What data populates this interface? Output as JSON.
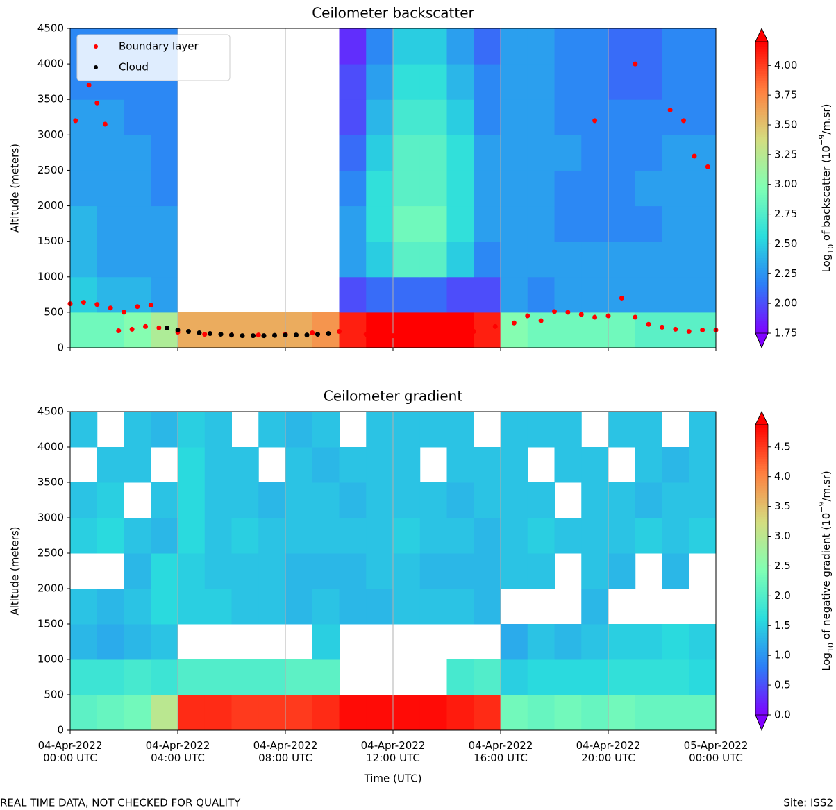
{
  "chart_data": [
    {
      "type": "heatmap",
      "title": "Ceilometer backscatter",
      "y_label": "Altitude (meters)",
      "colorbar_label": [
        "Log",
        "10",
        " of backscatter (10",
        "−9",
        "/m.sr)"
      ],
      "colormap": [
        "#8000ff",
        "#2c7ef7",
        "#2adddd",
        "#80ffb4",
        "#d4dd80",
        "#ff8040",
        "#ff0000"
      ],
      "clim": [
        1.75,
        4.2
      ],
      "cticks": [
        1.75,
        {
          "value": 2.0,
          "label": "2.00"
        },
        2.25,
        {
          "value": 2.5,
          "label": "2.50"
        },
        2.75,
        {
          "value": 3.0,
          "label": "3.00"
        },
        3.25,
        {
          "value": 3.5,
          "label": "3.50"
        },
        3.75,
        {
          "value": 4.0,
          "label": "4.00"
        }
      ],
      "xlim": [
        0,
        24
      ],
      "xticks": [
        0,
        4,
        8,
        12,
        16,
        20,
        24
      ],
      "grid": "x",
      "ylim": [
        0,
        4500
      ],
      "yticks": [
        0,
        500,
        1000,
        1500,
        2000,
        2500,
        3000,
        3500,
        4000,
        4500
      ],
      "xbins": [
        0,
        1,
        2,
        3,
        4,
        5,
        6,
        7,
        8,
        9,
        10,
        11,
        12,
        13,
        14,
        15,
        16,
        17,
        18,
        19,
        20,
        21,
        22,
        23,
        24
      ],
      "ybins": [
        0,
        500,
        1000,
        1500,
        2000,
        2500,
        3000,
        3500,
        4000,
        4500
      ],
      "values": [
        [
          2.9,
          2.9,
          3.0,
          3.2,
          3.6,
          3.6,
          3.6,
          3.6,
          3.6,
          3.7,
          4.1,
          4.2,
          4.2,
          4.2,
          4.2,
          4.1,
          3.0,
          2.9,
          2.9,
          2.9,
          2.9,
          2.8,
          2.8,
          2.8
        ],
        [
          2.5,
          2.4,
          2.4,
          2.3,
          null,
          null,
          null,
          null,
          null,
          null,
          2.0,
          2.1,
          2.1,
          2.1,
          2.0,
          2.0,
          2.3,
          2.2,
          2.3,
          2.3,
          2.3,
          2.3,
          2.3,
          2.3
        ],
        [
          2.4,
          2.3,
          2.3,
          2.3,
          null,
          null,
          null,
          null,
          null,
          null,
          2.3,
          2.5,
          2.8,
          2.8,
          2.5,
          2.2,
          2.3,
          2.3,
          2.3,
          2.3,
          2.3,
          2.3,
          2.3,
          2.3
        ],
        [
          2.4,
          2.3,
          2.3,
          2.3,
          null,
          null,
          null,
          null,
          null,
          null,
          2.3,
          2.6,
          2.9,
          2.9,
          2.6,
          2.3,
          2.3,
          2.3,
          2.2,
          2.2,
          2.2,
          2.2,
          2.3,
          2.3
        ],
        [
          2.3,
          2.3,
          2.3,
          2.2,
          null,
          null,
          null,
          null,
          null,
          null,
          2.2,
          2.6,
          2.8,
          2.8,
          2.6,
          2.3,
          2.3,
          2.3,
          2.2,
          2.2,
          2.2,
          2.3,
          2.3,
          2.3
        ],
        [
          2.3,
          2.3,
          2.3,
          2.2,
          null,
          null,
          null,
          null,
          null,
          null,
          2.1,
          2.5,
          2.8,
          2.8,
          2.6,
          2.3,
          2.3,
          2.3,
          2.3,
          2.2,
          2.2,
          2.2,
          2.3,
          2.3
        ],
        [
          2.3,
          2.3,
          2.2,
          2.2,
          null,
          null,
          null,
          null,
          null,
          null,
          2.0,
          2.4,
          2.7,
          2.7,
          2.5,
          2.2,
          2.3,
          2.3,
          2.2,
          2.2,
          2.2,
          2.2,
          2.2,
          2.2
        ],
        [
          2.2,
          2.2,
          2.2,
          2.2,
          null,
          null,
          null,
          null,
          null,
          null,
          2.0,
          2.3,
          2.6,
          2.6,
          2.4,
          2.2,
          2.3,
          2.3,
          2.2,
          2.2,
          2.1,
          2.1,
          2.2,
          2.2
        ],
        [
          2.2,
          2.2,
          2.2,
          2.2,
          null,
          null,
          null,
          null,
          null,
          null,
          1.9,
          2.2,
          2.5,
          2.5,
          2.3,
          2.1,
          2.3,
          2.3,
          2.2,
          2.2,
          2.1,
          2.1,
          2.2,
          2.2
        ]
      ],
      "series": [
        {
          "name": "Boundary layer",
          "color": "#ff0000",
          "x": [
            0,
            0.5,
            1,
            1.5,
            2,
            2.5,
            3,
            1.8,
            2.3,
            2.8,
            3.3,
            4,
            5,
            6,
            7,
            8,
            9,
            10,
            11,
            12,
            13,
            14,
            15,
            15.8,
            16.5,
            17,
            17.5,
            18,
            18.5,
            19,
            19.5,
            20,
            20.5,
            21,
            21.5,
            22,
            22.5,
            23,
            23.5,
            24,
            0.2,
            0.7,
            1,
            1.3,
            22.3,
            22.8,
            23.2,
            23.7,
            19.5,
            21
          ],
          "values": [
            620,
            640,
            610,
            560,
            500,
            580,
            600,
            240,
            260,
            300,
            280,
            220,
            190,
            180,
            180,
            190,
            210,
            230,
            190,
            170,
            160,
            190,
            230,
            300,
            350,
            450,
            380,
            510,
            500,
            470,
            430,
            450,
            700,
            430,
            330,
            290,
            260,
            230,
            250,
            250,
            3200,
            3700,
            3450,
            3150,
            3350,
            3200,
            2700,
            2550,
            3200,
            4000
          ]
        },
        {
          "name": "Cloud",
          "color": "#000000",
          "x": [
            3.6,
            4,
            4.4,
            4.8,
            5.2,
            5.6,
            6,
            6.4,
            6.8,
            7.2,
            7.6,
            8,
            8.4,
            8.8,
            9.2,
            9.6
          ],
          "values": [
            280,
            250,
            230,
            210,
            200,
            190,
            180,
            170,
            170,
            170,
            175,
            180,
            180,
            180,
            190,
            200
          ]
        }
      ],
      "legend": "upper left"
    },
    {
      "type": "heatmap",
      "title": "Ceilometer gradient",
      "y_label": "Altitude (meters)",
      "x_label": "Time (UTC)",
      "colorbar_label": [
        "Log",
        "10",
        " of negative gradient (10",
        "−9",
        "/m.sr)"
      ],
      "colormap": [
        "#8000ff",
        "#2c7ef7",
        "#2adddd",
        "#80ffb4",
        "#d4dd80",
        "#ff8040",
        "#ff0000"
      ],
      "clim": [
        0,
        4.87
      ],
      "cticks": [
        {
          "value": 0,
          "label": "0.0"
        },
        0.5,
        {
          "value": 1,
          "label": "1.0"
        },
        1.5,
        {
          "value": 2,
          "label": "2.0"
        },
        2.5,
        {
          "value": 3,
          "label": "3.0"
        },
        3.5,
        {
          "value": 4,
          "label": "4.0"
        },
        4.5
      ],
      "xlim": [
        0,
        24
      ],
      "xticks": [
        {
          "value": 0,
          "label": [
            "04-Apr-2022",
            "00:00 UTC"
          ]
        },
        {
          "value": 4,
          "label": [
            "04-Apr-2022",
            "04:00 UTC"
          ]
        },
        {
          "value": 8,
          "label": [
            "04-Apr-2022",
            "08:00 UTC"
          ]
        },
        {
          "value": 12,
          "label": [
            "04-Apr-2022",
            "12:00 UTC"
          ]
        },
        {
          "value": 16,
          "label": [
            "04-Apr-2022",
            "16:00 UTC"
          ]
        },
        {
          "value": 20,
          "label": [
            "04-Apr-2022",
            "20:00 UTC"
          ]
        },
        {
          "value": 24,
          "label": [
            "05-Apr-2022",
            "00:00 UTC"
          ]
        }
      ],
      "grid": "x",
      "ylim": [
        0,
        4500
      ],
      "yticks": [
        0,
        500,
        1000,
        1500,
        2000,
        2500,
        3000,
        3500,
        4000,
        4500
      ],
      "xbins": [
        0,
        1,
        2,
        3,
        4,
        5,
        6,
        7,
        8,
        9,
        10,
        11,
        12,
        13,
        14,
        15,
        16,
        17,
        18,
        19,
        20,
        21,
        22,
        23,
        24
      ],
      "ybins": [
        0,
        500,
        1000,
        1500,
        2000,
        2500,
        3000,
        3500,
        4000,
        4500
      ],
      "values": [
        [
          2.1,
          2.2,
          2.3,
          3.0,
          4.6,
          4.6,
          4.5,
          4.5,
          4.5,
          4.6,
          4.8,
          4.8,
          4.8,
          4.8,
          4.7,
          4.6,
          2.3,
          2.2,
          2.3,
          2.2,
          2.3,
          2.2,
          2.2,
          2.2
        ],
        [
          1.8,
          1.8,
          1.9,
          1.8,
          2.0,
          2.0,
          2.0,
          2.0,
          2.1,
          2.1,
          null,
          null,
          null,
          null,
          1.9,
          2.0,
          1.5,
          1.6,
          1.6,
          1.6,
          1.7,
          1.7,
          1.7,
          1.6
        ],
        [
          1.3,
          1.2,
          1.3,
          1.4,
          null,
          null,
          null,
          null,
          null,
          1.5,
          null,
          null,
          null,
          null,
          null,
          null,
          1.2,
          1.4,
          1.3,
          1.4,
          1.5,
          1.5,
          1.6,
          1.5
        ],
        [
          1.4,
          1.3,
          1.4,
          1.6,
          1.5,
          1.5,
          1.4,
          1.4,
          1.3,
          1.4,
          1.3,
          1.3,
          1.4,
          1.4,
          1.4,
          1.3,
          null,
          null,
          null,
          1.3,
          null,
          null,
          null,
          null
        ],
        [
          null,
          null,
          1.3,
          1.6,
          1.5,
          1.4,
          1.4,
          1.4,
          1.3,
          1.3,
          1.3,
          1.4,
          1.4,
          1.3,
          1.3,
          1.3,
          1.4,
          1.4,
          null,
          1.4,
          1.3,
          null,
          1.3,
          null
        ],
        [
          1.5,
          1.6,
          1.4,
          1.3,
          1.6,
          1.4,
          1.5,
          1.4,
          1.4,
          1.4,
          1.4,
          1.4,
          1.5,
          1.4,
          1.4,
          1.3,
          1.4,
          1.5,
          1.4,
          1.4,
          1.4,
          1.5,
          1.4,
          1.5
        ],
        [
          1.4,
          1.5,
          null,
          1.4,
          1.6,
          1.4,
          1.4,
          1.3,
          1.4,
          1.4,
          1.3,
          1.4,
          1.4,
          1.4,
          1.3,
          1.4,
          1.4,
          1.4,
          null,
          1.4,
          1.4,
          1.3,
          1.4,
          1.4
        ],
        [
          null,
          1.4,
          1.4,
          null,
          1.6,
          1.4,
          1.4,
          null,
          1.4,
          1.3,
          1.4,
          1.4,
          1.4,
          null,
          1.4,
          1.4,
          1.4,
          null,
          1.4,
          1.4,
          null,
          1.4,
          1.3,
          1.4
        ],
        [
          1.4,
          null,
          1.4,
          1.3,
          1.5,
          1.4,
          null,
          1.4,
          1.3,
          1.4,
          null,
          1.4,
          1.4,
          1.4,
          1.4,
          null,
          1.4,
          1.4,
          1.4,
          null,
          1.4,
          1.4,
          null,
          1.4
        ]
      ]
    }
  ],
  "footer": {
    "left": "REAL TIME DATA, NOT CHECKED FOR QUALITY",
    "right": "Site: ISS2"
  }
}
